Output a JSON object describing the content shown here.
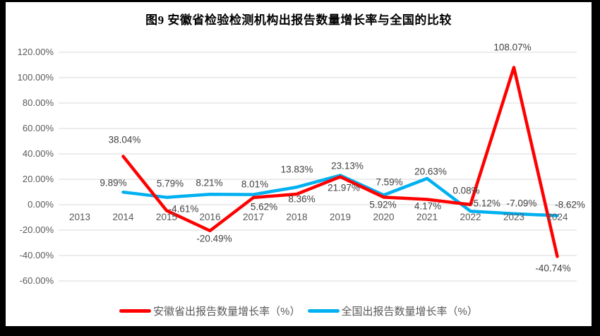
{
  "page": {
    "background_color": "#000000",
    "chart_background_color": "#ffffff"
  },
  "chart_data": {
    "type": "line",
    "title": "图9 安徽省检验检测机构出报告数量增长率与全国的比较",
    "categories": [
      "2013",
      "2014",
      "2015",
      "2016",
      "2017",
      "2018",
      "2019",
      "2020",
      "2021",
      "2022",
      "2023",
      "2024"
    ],
    "series": [
      {
        "name": "安徽省出报告数量增长率（%）",
        "color": "#ff0000",
        "values": [
          null,
          38.04,
          -4.61,
          -20.49,
          5.62,
          8.36,
          21.97,
          5.92,
          4.17,
          0.08,
          108.07,
          -40.74
        ],
        "labels": [
          null,
          "38.04%",
          "-4.61%",
          "-20.49%",
          "5.62%",
          "8.36%",
          "21.97%",
          "5.92%",
          "4.17%",
          "0.08%",
          "108.07%",
          "-40.74%"
        ],
        "label_offsets": [
          null,
          [
            2,
            -24
          ],
          [
            24,
            -2
          ],
          [
            6,
            11
          ],
          [
            15,
            13
          ],
          [
            7,
            7
          ],
          [
            5,
            16
          ],
          [
            -1,
            11
          ],
          [
            1,
            10
          ],
          [
            -6,
            -20
          ],
          [
            -2,
            -28
          ],
          [
            -6,
            17
          ]
        ]
      },
      {
        "name": "全国出报告数量增长率（%）",
        "color": "#00b0f0",
        "values": [
          null,
          9.89,
          5.79,
          8.21,
          8.01,
          13.83,
          23.13,
          7.59,
          20.63,
          -5.12,
          -7.09,
          -8.62
        ],
        "labels": [
          null,
          "9.89%",
          "5.79%",
          "8.21%",
          "8.01%",
          "13.83%",
          "23.13%",
          "7.59%",
          "20.63%",
          "-5.12%",
          "-7.09%",
          "-8.62%"
        ],
        "label_offsets": [
          null,
          [
            -14,
            -13
          ],
          [
            5,
            -20
          ],
          [
            -1,
            -16
          ],
          [
            2,
            -15
          ],
          [
            0,
            -25
          ],
          [
            10,
            -13
          ],
          [
            8,
            -18
          ],
          [
            5,
            -10
          ],
          [
            21,
            -11
          ],
          [
            11,
            -15
          ],
          [
            18,
            -16
          ]
        ]
      }
    ],
    "y_axis": {
      "min": -60,
      "max": 120,
      "step": 20,
      "tick_labels": [
        "120.00%",
        "100.00%",
        "80.00%",
        "60.00%",
        "40.00%",
        "20.00%",
        "0.00%",
        "-20.00%",
        "-40.00%",
        "-60.00%"
      ]
    },
    "x_axis_label_row": "below zero line",
    "grid": true,
    "legend_position": "bottom",
    "colors": {
      "gridline": "#d9d9d9",
      "axis_text": "#595959",
      "data_label_text": "#404040",
      "title_text": "#000000"
    }
  }
}
